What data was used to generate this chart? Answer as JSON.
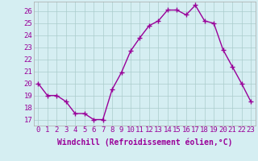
{
  "x": [
    0,
    1,
    2,
    3,
    4,
    5,
    6,
    7,
    8,
    9,
    10,
    11,
    12,
    13,
    14,
    15,
    16,
    17,
    18,
    19,
    20,
    21,
    22,
    23
  ],
  "y": [
    20.0,
    19.0,
    19.0,
    18.5,
    17.5,
    17.5,
    17.0,
    17.0,
    19.5,
    20.9,
    22.7,
    23.8,
    24.8,
    25.2,
    26.1,
    26.1,
    25.7,
    26.5,
    25.2,
    25.0,
    22.8,
    21.4,
    20.0,
    18.5
  ],
  "line_color": "#990099",
  "marker": "+",
  "markersize": 4,
  "linewidth": 1.0,
  "markeredgewidth": 1.0,
  "background_color": "#d5eef2",
  "grid_color": "#aacccc",
  "xlabel": "Windchill (Refroidissement éolien,°C)",
  "xlabel_fontsize": 7,
  "ylabel_ticks": [
    17,
    18,
    19,
    20,
    21,
    22,
    23,
    24,
    25,
    26
  ],
  "ylim": [
    16.5,
    26.8
  ],
  "xlim": [
    -0.5,
    23.5
  ],
  "tick_fontsize": 6.5,
  "label_color": "#990099"
}
